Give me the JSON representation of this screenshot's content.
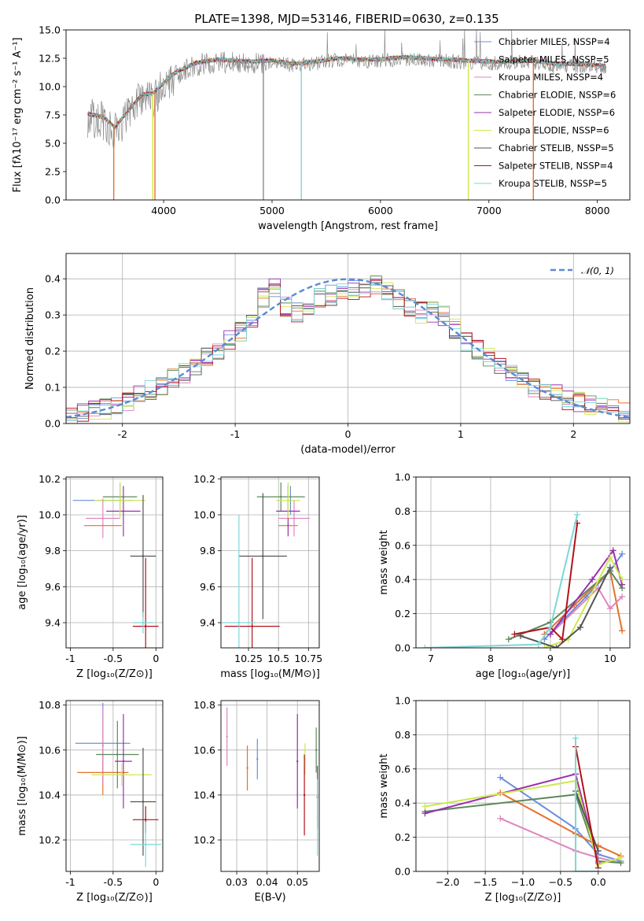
{
  "figure": {
    "title": "PLATE=1398, MJD=53146, FIBERID=0630, z=0.135"
  },
  "colors": {
    "Chabrier MILES": "#6a8fdb",
    "Salpeter MILES": "#e6712b",
    "Kroupa MILES": "#df86be",
    "Chabrier ELODIE": "#5c8a5c",
    "Salpeter ELODIE": "#9a2fb0",
    "Kroupa ELODIE": "#cde84e",
    "Chabrier STELIB": "#555555",
    "Salpeter STELIB": "#b0131b",
    "Kroupa STELIB": "#7ed7d7",
    "spectrum": "#8c8c8c",
    "gaussian": "#5a8ad6"
  },
  "chart_data": [
    {
      "id": "spectrum",
      "type": "line",
      "title": "PLATE=1398, MJD=53146, FIBERID=0630, z=0.135",
      "xlabel": "wavelength [Angstrom, rest frame]",
      "ylabel": "Flux [fλ10⁻¹⁷ erg cm⁻² s⁻¹ A⁻¹]",
      "xlim": [
        3100,
        8300
      ],
      "ylim": [
        0,
        15
      ],
      "xticks": [
        4000,
        5000,
        6000,
        7000,
        8000
      ],
      "yticks": [
        0.0,
        2.5,
        5.0,
        7.5,
        10.0,
        12.5,
        15.0
      ],
      "legend_position": "top-right",
      "legend": [
        "Chabrier MILES, NSSP=4",
        "Salpeter MILES, NSSP=5",
        "Kroupa MILES, NSSP=4",
        "Chabrier ELODIE, NSSP=6",
        "Salpeter ELODIE, NSSP=6",
        "Kroupa ELODIE, NSSP=6",
        "Chabrier STELIB, NSSP=5",
        "Salpeter STELIB, NSSP=4",
        "Kroupa STELIB, NSSP=5"
      ],
      "continuum": {
        "x": [
          3300,
          3450,
          3550,
          3650,
          3800,
          3900,
          4000,
          4100,
          4300,
          4500,
          4800,
          5000,
          5200,
          5400,
          5600,
          5800,
          6000,
          6200,
          6400,
          6600,
          6800,
          7000,
          7200,
          7400,
          7600,
          7800,
          8000,
          8080
        ],
        "y": [
          7.6,
          7.3,
          6.4,
          7.6,
          9.3,
          9.4,
          10.3,
          11.2,
          12.1,
          12.4,
          12.2,
          12.3,
          12.0,
          12.2,
          12.5,
          12.4,
          12.4,
          12.6,
          12.5,
          12.4,
          12.3,
          12.2,
          12.2,
          12.3,
          12.0,
          12.0,
          11.9,
          11.8
        ]
      },
      "spikes": [
        {
          "model": "Salpeter MILES",
          "x": 3540
        },
        {
          "model": "Salpeter MILES",
          "x": 3920
        },
        {
          "model": "Kroupa ELODIE",
          "x": 3900
        },
        {
          "model": "spectrum",
          "x": 4920
        },
        {
          "model": "Kroupa STELIB",
          "x": 5270
        },
        {
          "model": "Kroupa ELODIE",
          "x": 6810
        },
        {
          "model": "Salpeter MILES",
          "x": 7410
        }
      ]
    },
    {
      "id": "residuals",
      "type": "line",
      "xlabel": "(data-model)/error",
      "ylabel": "Normed distribution",
      "xlim": [
        -2.5,
        2.5
      ],
      "ylim": [
        0,
        0.47
      ],
      "xticks": [
        -2,
        -1,
        0,
        1,
        2
      ],
      "yticks": [
        0.0,
        0.1,
        0.2,
        0.3,
        0.4
      ],
      "grid": true,
      "legend_position": "top-right",
      "legend": [
        "𝒩(0, 1)"
      ],
      "bin_width": 0.1,
      "base_histogram": {
        "x": [
          -2.5,
          -2.0,
          -1.5,
          -1.0,
          -0.8,
          -0.7,
          -0.6,
          -0.5,
          -0.3,
          0.0,
          0.3,
          0.5,
          0.7,
          0.8,
          1.0,
          1.5,
          2.0,
          2.5
        ],
        "y": [
          0.02,
          0.05,
          0.13,
          0.24,
          0.29,
          0.4,
          0.34,
          0.3,
          0.34,
          0.37,
          0.38,
          0.33,
          0.3,
          0.32,
          0.24,
          0.12,
          0.06,
          0.03
        ]
      }
    },
    {
      "id": "age-vs-Z",
      "type": "scatter",
      "xlabel": "Z [log₁₀(Z/Z⊙)]",
      "ylabel": "age  [log₁₀(age/yr)]",
      "xlim": [
        -1.05,
        0.08
      ],
      "ylim": [
        9.26,
        10.21
      ],
      "xticks": [
        -1.0,
        -0.5,
        0.0
      ],
      "yticks": [
        9.4,
        9.6,
        9.8,
        10.0,
        10.2
      ],
      "grid": true,
      "points": [
        {
          "model": "Chabrier MILES",
          "x": -0.62,
          "xerr": 0.35,
          "y": 10.08,
          "yerr": 0.0
        },
        {
          "model": "Salpeter MILES",
          "x": -0.62,
          "xerr": 0.22,
          "y": 9.94,
          "yerr": 0.0
        },
        {
          "model": "Kroupa MILES",
          "x": -0.62,
          "xerr": 0.2,
          "y": 9.98,
          "yerr": 0.11
        },
        {
          "model": "Chabrier ELODIE",
          "x": -0.42,
          "xerr": 0.2,
          "y": 10.1,
          "yerr": 0.08
        },
        {
          "model": "Salpeter ELODIE",
          "x": -0.38,
          "xerr": 0.2,
          "y": 10.02,
          "yerr": 0.14
        },
        {
          "model": "Kroupa ELODIE",
          "x": -0.42,
          "xerr": 0.3,
          "y": 10.08,
          "yerr": 0.1
        },
        {
          "model": "Chabrier STELIB",
          "x": -0.15,
          "xerr": 0.15,
          "y": 9.77,
          "yerr": 0.34
        },
        {
          "model": "Salpeter STELIB",
          "x": -0.12,
          "xerr": 0.15,
          "y": 9.38,
          "yerr": 0.38
        },
        {
          "model": "Kroupa STELIB",
          "x": -0.15,
          "xerr": 0.12,
          "y": 9.4,
          "yerr": 0.06
        }
      ]
    },
    {
      "id": "age-vs-mass",
      "type": "scatter",
      "xlabel": "mass [log₁₀(M/M⊙)]",
      "xlim": [
        10.02,
        10.84
      ],
      "ylim": [
        9.26,
        10.21
      ],
      "xticks": [
        10.25,
        10.5,
        10.75
      ],
      "yticks": [
        9.4,
        9.6,
        9.8,
        10.0,
        10.2
      ],
      "grid": true,
      "points": [
        {
          "model": "Chabrier MILES",
          "x": 10.6,
          "xerr": 0.0,
          "y": 10.08,
          "yerr": 0.08
        },
        {
          "model": "Salpeter MILES",
          "x": 10.58,
          "xerr": 0.08,
          "y": 9.94,
          "yerr": 0.0
        },
        {
          "model": "Kroupa MILES",
          "x": 10.63,
          "xerr": 0.13,
          "y": 9.98,
          "yerr": 0.1
        },
        {
          "model": "Chabrier ELODIE",
          "x": 10.52,
          "xerr": 0.2,
          "y": 10.1,
          "yerr": 0.08
        },
        {
          "model": "Salpeter ELODIE",
          "x": 10.58,
          "xerr": 0.1,
          "y": 10.02,
          "yerr": 0.14
        },
        {
          "model": "Kroupa ELODIE",
          "x": 10.58,
          "xerr": 0.1,
          "y": 10.08,
          "yerr": 0.1
        },
        {
          "model": "Chabrier STELIB",
          "x": 10.37,
          "xerr": 0.2,
          "y": 9.77,
          "yerr": 0.35
        },
        {
          "model": "Salpeter STELIB",
          "x": 10.28,
          "xerr": 0.23,
          "y": 9.38,
          "yerr": 0.38
        },
        {
          "model": "Kroupa STELIB",
          "x": 10.17,
          "xerr": 0.14,
          "y": 9.4,
          "yerr": 0.6
        }
      ]
    },
    {
      "id": "mass-weight-vs-age",
      "type": "line",
      "xlabel": "age  [log₁₀(age/yr)]",
      "ylabel": "mass weight",
      "xlim": [
        6.75,
        10.33
      ],
      "ylim": [
        0,
        1
      ],
      "xticks": [
        7,
        8,
        9,
        10
      ],
      "yticks": [
        0.0,
        0.2,
        0.4,
        0.6,
        0.8,
        1.0
      ],
      "grid": true,
      "series": [
        {
          "model": "Chabrier MILES",
          "x": [
            8.9,
            9.6,
            10.0,
            10.2
          ],
          "y": [
            0.05,
            0.3,
            0.45,
            0.55
          ]
        },
        {
          "model": "Salpeter MILES",
          "x": [
            8.9,
            9.4,
            10.0,
            10.2
          ],
          "y": [
            0.08,
            0.25,
            0.45,
            0.1
          ]
        },
        {
          "model": "Kroupa MILES",
          "x": [
            9.0,
            9.8,
            10.0,
            10.2
          ],
          "y": [
            0.08,
            0.35,
            0.23,
            0.3
          ]
        },
        {
          "model": "Chabrier ELODIE",
          "x": [
            8.3,
            9.0,
            10.0,
            10.2
          ],
          "y": [
            0.05,
            0.15,
            0.45,
            0.35
          ]
        },
        {
          "model": "Salpeter ELODIE",
          "x": [
            9.0,
            9.7,
            10.05,
            10.2
          ],
          "y": [
            0.08,
            0.4,
            0.57,
            0.37
          ]
        },
        {
          "model": "Kroupa ELODIE",
          "x": [
            8.9,
            9.3,
            10.0,
            10.2
          ],
          "y": [
            0.0,
            0.05,
            0.53,
            0.4
          ]
        },
        {
          "model": "Chabrier STELIB",
          "x": [
            8.5,
            9.1,
            9.5,
            10.0
          ],
          "y": [
            0.07,
            0.0,
            0.12,
            0.47
          ]
        },
        {
          "model": "Salpeter STELIB",
          "x": [
            8.4,
            9.0,
            9.2,
            9.45
          ],
          "y": [
            0.08,
            0.12,
            0.05,
            0.73
          ]
        },
        {
          "model": "Kroupa STELIB",
          "x": [
            6.9,
            8.8,
            9.0,
            9.45
          ],
          "y": [
            0.0,
            0.02,
            0.12,
            0.78
          ]
        }
      ]
    },
    {
      "id": "mass-vs-Z",
      "type": "scatter",
      "xlabel": "Z [log₁₀(Z/Z⊙)]",
      "ylabel": "mass [log₁₀(M/M⊙)]",
      "xlim": [
        -1.05,
        0.08
      ],
      "ylim": [
        10.06,
        10.82
      ],
      "xticks": [
        -1.0,
        -0.5,
        0.0
      ],
      "yticks": [
        10.2,
        10.4,
        10.6,
        10.8
      ],
      "grid": true,
      "points": [
        {
          "model": "Chabrier MILES",
          "x": -0.62,
          "xerr": 0.32,
          "y": 10.63,
          "yerr": 0.18
        },
        {
          "model": "Salpeter MILES",
          "x": -0.62,
          "xerr": 0.3,
          "y": 10.5,
          "yerr": 0.1
        },
        {
          "model": "Kroupa MILES",
          "x": -0.62,
          "xerr": 0.0,
          "y": 10.62,
          "yerr": 0.17
        },
        {
          "model": "Chabrier ELODIE",
          "x": -0.45,
          "xerr": 0.25,
          "y": 10.58,
          "yerr": 0.15
        },
        {
          "model": "Salpeter ELODIE",
          "x": -0.38,
          "xerr": 0.1,
          "y": 10.55,
          "yerr": 0.21
        },
        {
          "model": "Kroupa ELODIE",
          "x": -0.4,
          "xerr": 0.35,
          "y": 10.49,
          "yerr": 0.05
        },
        {
          "model": "Chabrier STELIB",
          "x": -0.15,
          "xerr": 0.15,
          "y": 10.37,
          "yerr": 0.24
        },
        {
          "model": "Salpeter STELIB",
          "x": -0.12,
          "xerr": 0.15,
          "y": 10.29,
          "yerr": 0.06
        },
        {
          "model": "Kroupa STELIB",
          "x": -0.12,
          "xerr": 0.18,
          "y": 10.18,
          "yerr": 0.1
        }
      ]
    },
    {
      "id": "mass-vs-ebv",
      "type": "scatter",
      "xlabel": "E(B-V)",
      "xlim": [
        0.0248,
        0.0572
      ],
      "ylim": [
        10.06,
        10.82
      ],
      "xticks": [
        0.03,
        0.04,
        0.05
      ],
      "xtick_labels": [
        "0.03",
        "0.04",
        "0.05"
      ],
      "yticks": [
        10.2,
        10.4,
        10.6,
        10.8
      ],
      "grid": true,
      "points": [
        {
          "model": "Kroupa MILES",
          "x": 0.0268,
          "y": 10.66,
          "yerr": 0.13
        },
        {
          "model": "Salpeter MILES",
          "x": 0.0335,
          "y": 10.52,
          "yerr": 0.1
        },
        {
          "model": "Chabrier MILES",
          "x": 0.0368,
          "y": 10.56,
          "yerr": 0.09
        },
        {
          "model": "Salpeter ELODIE",
          "x": 0.05,
          "y": 10.55,
          "yerr": 0.21
        },
        {
          "model": "Kroupa ELODIE",
          "x": 0.0525,
          "y": 10.56,
          "yerr": 0.07
        },
        {
          "model": "Salpeter STELIB",
          "x": 0.0523,
          "y": 10.4,
          "yerr": 0.18
        },
        {
          "model": "Chabrier ELODIE",
          "x": 0.0562,
          "y": 10.6,
          "yerr": 0.1
        },
        {
          "model": "Chabrier STELIB",
          "x": 0.0566,
          "y": 10.39,
          "yerr": 0.14
        },
        {
          "model": "Kroupa STELIB",
          "x": 0.0566,
          "y": 10.3,
          "yerr": 0.17
        }
      ]
    },
    {
      "id": "mass-weight-vs-Z",
      "type": "line",
      "xlabel": "Z [log₁₀(Z/Z⊙)]",
      "ylabel": "mass weight",
      "xlim": [
        -2.42,
        0.42
      ],
      "ylim": [
        0,
        1
      ],
      "xticks": [
        -2.0,
        -1.5,
        -1.0,
        -0.5,
        0.0
      ],
      "xtick_labels": [
        "−2.0",
        "−1.5",
        "−1.0",
        "−0.5",
        "0.0"
      ],
      "yticks": [
        0.0,
        0.2,
        0.4,
        0.6,
        0.8,
        1.0
      ],
      "grid": true,
      "series": [
        {
          "model": "Chabrier MILES",
          "x": [
            -1.3,
            -0.3,
            0.0,
            0.3
          ],
          "y": [
            0.55,
            0.25,
            0.1,
            0.06
          ]
        },
        {
          "model": "Salpeter MILES",
          "x": [
            -1.3,
            -0.3,
            0.0,
            0.3
          ],
          "y": [
            0.46,
            0.22,
            0.15,
            0.09
          ]
        },
        {
          "model": "Kroupa MILES",
          "x": [
            -1.3,
            -0.3,
            0.0,
            0.3
          ],
          "y": [
            0.31,
            0.12,
            0.08,
            0.05
          ]
        },
        {
          "model": "Chabrier ELODIE",
          "x": [
            -2.3,
            -0.3,
            0.0,
            0.3
          ],
          "y": [
            0.35,
            0.45,
            0.06,
            0.05
          ]
        },
        {
          "model": "Salpeter ELODIE",
          "x": [
            -2.3,
            -0.3,
            0.0
          ],
          "y": [
            0.34,
            0.57,
            0.05
          ]
        },
        {
          "model": "Kroupa ELODIE",
          "x": [
            -2.3,
            -0.3,
            0.0,
            0.3
          ],
          "y": [
            0.38,
            0.53,
            0.04,
            0.08
          ]
        },
        {
          "model": "Chabrier STELIB",
          "x": [
            -0.3,
            0.0
          ],
          "y": [
            0.47,
            0.12
          ]
        },
        {
          "model": "Salpeter STELIB",
          "x": [
            -0.3,
            0.0
          ],
          "y": [
            0.73,
            0.02
          ]
        },
        {
          "model": "Kroupa STELIB",
          "x": [
            -0.3,
            -0.3,
            0.0
          ],
          "y": [
            0.78,
            0.0,
            0.0
          ]
        }
      ]
    }
  ]
}
